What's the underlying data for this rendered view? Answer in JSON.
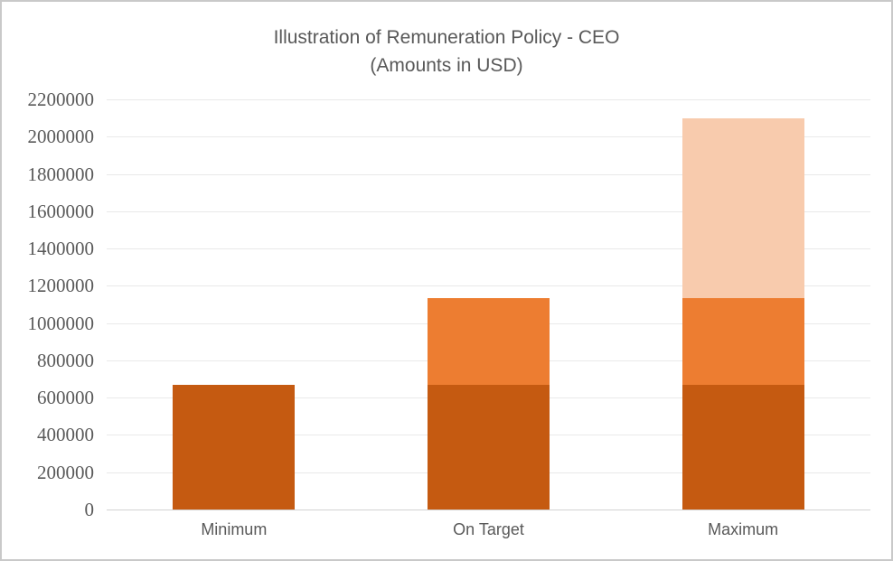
{
  "chart": {
    "title_line1": "Illustration of Remuneration Policy - CEO",
    "title_line2": "(Amounts in USD)"
  },
  "chart_data": {
    "type": "bar",
    "stacked": true,
    "title": "Illustration of Remuneration Policy - CEO",
    "subtitle": "(Amounts in USD)",
    "categories": [
      "Minimum",
      "On Target",
      "Maximum"
    ],
    "series": [
      {
        "name": "base-segment-dark-orange",
        "color": "#C55A11",
        "values": [
          670000,
          670000,
          670000
        ]
      },
      {
        "name": "mid-segment-orange",
        "color": "#ED7D31",
        "values": [
          0,
          465000,
          465000
        ]
      },
      {
        "name": "top-segment-light-orange",
        "color": "#F8CBAD",
        "values": [
          0,
          0,
          965000
        ]
      }
    ],
    "stack_totals": [
      670000,
      1135000,
      2100000
    ],
    "ylim": [
      0,
      2200000
    ],
    "ytick_step": 200000,
    "ytick_labels": [
      "0",
      "200000",
      "400000",
      "600000",
      "800000",
      "1000000",
      "1200000",
      "1400000",
      "1600000",
      "1800000",
      "2000000",
      "2200000"
    ],
    "xlabel": "",
    "ylabel": "",
    "grid": true,
    "legend_position": "none"
  },
  "colors": {
    "segment_dark_orange": "#C55A11",
    "segment_orange": "#ED7D31",
    "segment_light_orange": "#F8CBAD",
    "gridline": "#E9E9E9",
    "axis_line": "#D2D2D2",
    "text": "#595959",
    "chart_border": "#C9C9C9",
    "background": "#FFFFFF"
  }
}
